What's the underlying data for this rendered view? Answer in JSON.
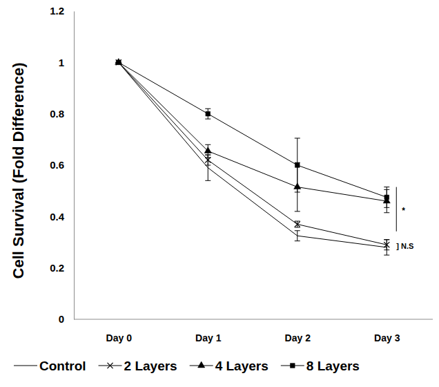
{
  "chart_data": {
    "type": "line",
    "y_label": "Cell Survival (Fold Difference)",
    "categories": [
      "Day 0",
      "Day 1",
      "Day 2",
      "Day 3"
    ],
    "ylim": [
      0,
      1.2
    ],
    "yticks": [
      0,
      0.2,
      0.4,
      0.6,
      0.8,
      1,
      1.2
    ],
    "grid": false,
    "legend": "bottom",
    "series": [
      {
        "name": "Control",
        "color": "#000000",
        "marker": "none",
        "line_style": "solid",
        "values": [
          1,
          0.59,
          0.325,
          0.28
        ],
        "errors": [
          0,
          0.05,
          0.02,
          0.03
        ]
      },
      {
        "name": "2 Layers",
        "color": "#000000",
        "marker": "x",
        "line_style": "solid",
        "values": [
          1,
          0.62,
          0.37,
          0.29
        ],
        "errors": [
          0,
          0.02,
          0.012,
          0.02
        ]
      },
      {
        "name": "4 Layers",
        "color": "#000000",
        "marker": "triangle",
        "line_style": "solid",
        "values": [
          1,
          0.655,
          0.515,
          0.46
        ],
        "errors": [
          0,
          0.025,
          0.095,
          0.045
        ]
      },
      {
        "name": "8 Layers",
        "color": "#000000",
        "marker": "square",
        "line_style": "solid",
        "values": [
          1,
          0.8,
          0.6,
          0.475
        ],
        "errors": [
          0,
          0.02,
          0.105,
          0.04
        ]
      }
    ],
    "annotations": [
      "*",
      "] N.S"
    ]
  }
}
